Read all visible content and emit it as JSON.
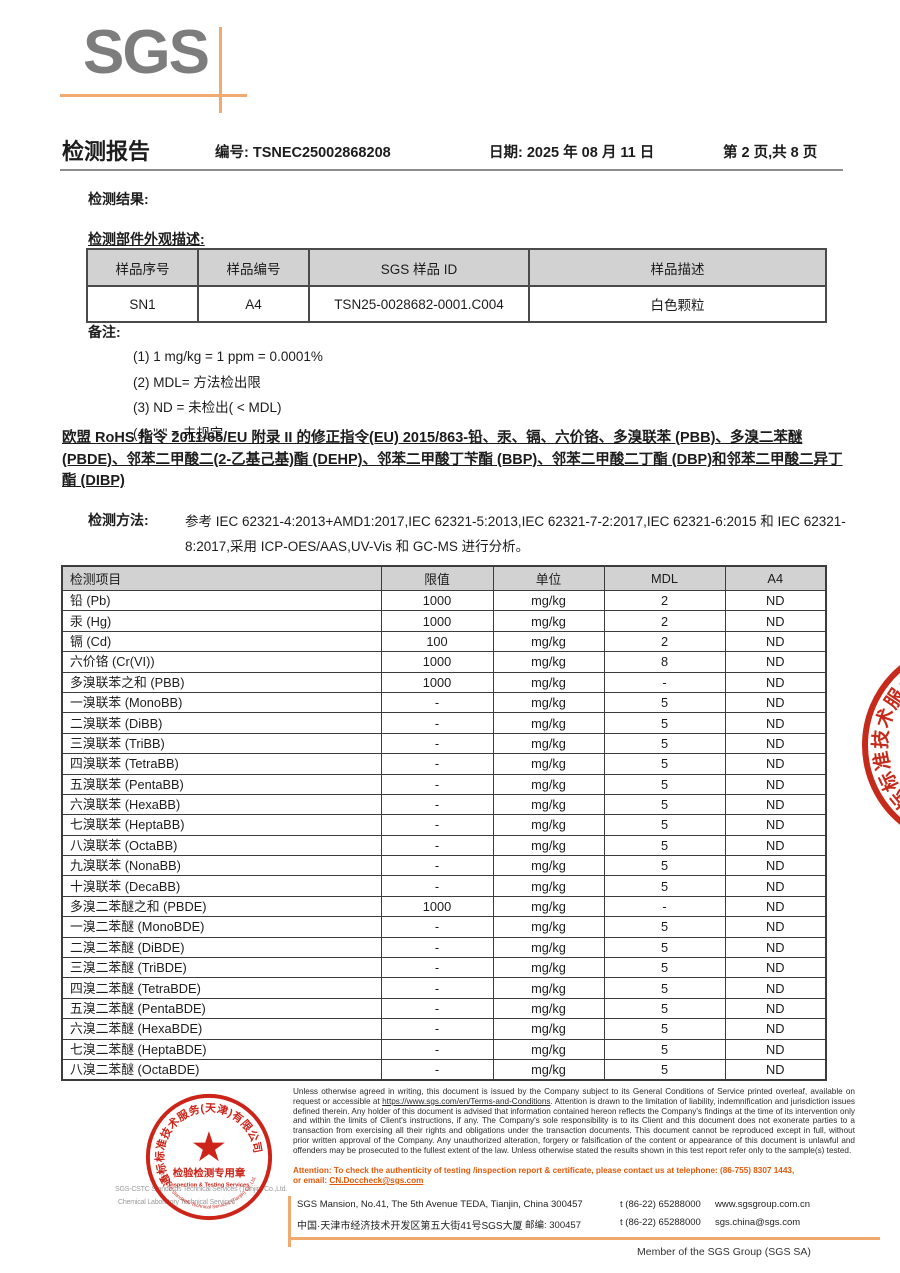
{
  "header": {
    "logo_text": "SGS",
    "title": "检测报告",
    "report_no_label": "编号:",
    "report_no": "TSNEC25002868208",
    "date_label": "日期:",
    "date": "2025 年 08 月 11 日",
    "page_info": "第 2 页,共 8 页"
  },
  "sections": {
    "results_heading": "检测结果:",
    "appearance_heading": "检测部件外观描述:",
    "notes_heading": "备注:"
  },
  "sample_table": {
    "headers": [
      "样品序号",
      "样品编号",
      "SGS 样品 ID",
      "样品描述"
    ],
    "rows": [
      [
        "SN1",
        "A4",
        "TSN25-0028682-0001.C004",
        "白色颗粒"
      ]
    ]
  },
  "notes": {
    "items": [
      "(1) 1 mg/kg = 1 ppm = 0.0001%",
      "(2) MDL=  方法检出限",
      "(3) ND = 未检出( < MDL)",
      "(4) \"-\" = 未规定"
    ]
  },
  "rohs_statement": "欧盟 RoHS 指令 2011/65/EU 附录 II 的修正指令(EU) 2015/863-铅、汞、镉、六价铬、多溴联苯 (PBB)、多溴二苯醚 (PBDE)、邻苯二甲酸二(2-乙基己基)酯 (DEHP)、邻苯二甲酸丁苄酯 (BBP)、邻苯二甲酸二丁酯 (DBP)和邻苯二甲酸二异丁酯 (DIBP)",
  "method": {
    "label": "检测方法:",
    "text": "参考 IEC 62321-4:2013+AMD1:2017,IEC 62321-5:2013,IEC 62321-7-2:2017,IEC 62321-6:2015 和 IEC 62321-8:2017,采用 ICP-OES/AAS,UV-Vis 和 GC-MS 进行分析。"
  },
  "results_table": {
    "headers": [
      "检测项目",
      "限值",
      "单位",
      "MDL",
      "A4"
    ],
    "rows": [
      [
        "铅 (Pb)",
        "1000",
        "mg/kg",
        "2",
        "ND"
      ],
      [
        "汞 (Hg)",
        "1000",
        "mg/kg",
        "2",
        "ND"
      ],
      [
        "镉 (Cd)",
        "100",
        "mg/kg",
        "2",
        "ND"
      ],
      [
        "六价铬 (Cr(VI))",
        "1000",
        "mg/kg",
        "8",
        "ND"
      ],
      [
        "多溴联苯之和 (PBB)",
        "1000",
        "mg/kg",
        "-",
        "ND"
      ],
      [
        "一溴联苯 (MonoBB)",
        "-",
        "mg/kg",
        "5",
        "ND"
      ],
      [
        "二溴联苯 (DiBB)",
        "-",
        "mg/kg",
        "5",
        "ND"
      ],
      [
        "三溴联苯 (TriBB)",
        "-",
        "mg/kg",
        "5",
        "ND"
      ],
      [
        "四溴联苯 (TetraBB)",
        "-",
        "mg/kg",
        "5",
        "ND"
      ],
      [
        "五溴联苯 (PentaBB)",
        "-",
        "mg/kg",
        "5",
        "ND"
      ],
      [
        "六溴联苯 (HexaBB)",
        "-",
        "mg/kg",
        "5",
        "ND"
      ],
      [
        "七溴联苯 (HeptaBB)",
        "-",
        "mg/kg",
        "5",
        "ND"
      ],
      [
        "八溴联苯 (OctaBB)",
        "-",
        "mg/kg",
        "5",
        "ND"
      ],
      [
        "九溴联苯 (NonaBB)",
        "-",
        "mg/kg",
        "5",
        "ND"
      ],
      [
        "十溴联苯 (DecaBB)",
        "-",
        "mg/kg",
        "5",
        "ND"
      ],
      [
        "多溴二苯醚之和 (PBDE)",
        "1000",
        "mg/kg",
        "-",
        "ND"
      ],
      [
        "一溴二苯醚 (MonoBDE)",
        "-",
        "mg/kg",
        "5",
        "ND"
      ],
      [
        "二溴二苯醚 (DiBDE)",
        "-",
        "mg/kg",
        "5",
        "ND"
      ],
      [
        "三溴二苯醚 (TriBDE)",
        "-",
        "mg/kg",
        "5",
        "ND"
      ],
      [
        "四溴二苯醚 (TetraBDE)",
        "-",
        "mg/kg",
        "5",
        "ND"
      ],
      [
        "五溴二苯醚 (PentaBDE)",
        "-",
        "mg/kg",
        "5",
        "ND"
      ],
      [
        "六溴二苯醚 (HexaBDE)",
        "-",
        "mg/kg",
        "5",
        "ND"
      ],
      [
        "七溴二苯醚 (HeptaBDE)",
        "-",
        "mg/kg",
        "5",
        "ND"
      ],
      [
        "八溴二苯醚 (OctaBDE)",
        "-",
        "mg/kg",
        "5",
        "ND"
      ]
    ]
  },
  "footer": {
    "disclaimer_pre": "Unless otherwise agreed in writing, this document is issued by the Company subject to its General Conditions of Service printed overleaf, available on request or accessible at ",
    "disclaimer_url": "https://www.sgs.com/en/Terms-and-Conditions",
    "disclaimer_post": ". Attention is drawn to the limitation of liability, indemnification and jurisdiction issues defined therein. Any holder of this document is advised that information contained hereon reflects the Company's findings at the time of its intervention only and within the limits of Client's instructions, if any. The Company's sole responsibility is to its Client and this document does not exonerate parties to a transaction from exercising all their rights and obligations under the transaction documents. This document cannot be reproduced except in full, without prior written approval of the Company. Any unauthorized alteration, forgery or falsification of the content or appearance of this document is unlawful and offenders may be prosecuted to the fullest extent of the law. Unless otherwise stated the results shown in this test report refer only to the sample(s) tested.",
    "attention_line": "Attention: To check the authenticity of testing /inspection report & certificate, please contact us at telephone: (86-755) 8307 1443,",
    "attention_email_prefix": "or email: ",
    "attention_email": "CN.Doccheck@sgs.com",
    "address_en": "SGS Mansion, No.41, The 5th Avenue TEDA, Tianjin, China 300457",
    "address_cn": "中国·天津市经济技术开发区第五大街41号SGS大厦",
    "postcode": "邮编: 300457",
    "phone1": "t (86-22) 65288000",
    "phone2": "t (86-22) 65288000",
    "website": "www.sgsgroup.com.cn",
    "email2": "sgs.china@sgs.com",
    "member": "Member of the SGS Group (SGS SA)",
    "company_gray_line1": "SGS-CSTC Standards Technical Services (Tianjin) Co.,Ltd.",
    "company_gray_line2": "Chemical Laboratory Technical Services"
  },
  "stamp": {
    "ring_text_top": "通标标准技术服务(天津)有限公司",
    "star": "★",
    "line1": "检验检测专用章",
    "line2": "Inspection & Testing Services",
    "ring_text_bottom": "SGS-CSTC Standards Technical Services (Tianjin) Co.,Ltd."
  },
  "colors": {
    "accent_orange": "#F0A96E",
    "stamp_red": "#CC2418",
    "attention_orange": "#E0590A",
    "table_header_gray": "#D2D2D2",
    "logo_gray": "#7D7D7D"
  }
}
